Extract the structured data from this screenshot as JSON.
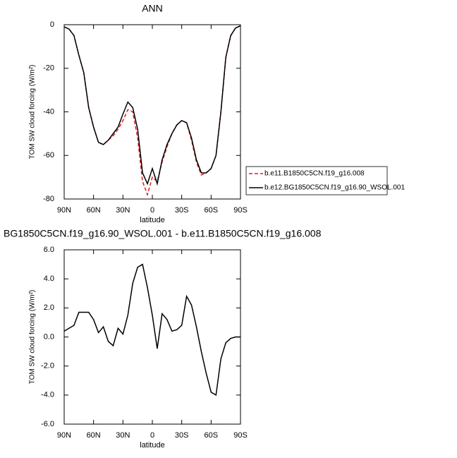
{
  "chart_data": [
    {
      "type": "line",
      "title": "ANN",
      "x_label": "latitude",
      "y_label": "TOM SW cloud forcing (W/m²)",
      "x": [
        90,
        85,
        80,
        75,
        70,
        65,
        60,
        55,
        50,
        45,
        40,
        35,
        30,
        25,
        20,
        15,
        10,
        5,
        0,
        -5,
        -10,
        -15,
        -20,
        -25,
        -30,
        -35,
        -40,
        -45,
        -50,
        -55,
        -60,
        -65,
        -70,
        -75,
        -80,
        -85,
        -90
      ],
      "series": [
        {
          "name": "b.e11.B1850C5CN.f19_g16.008",
          "color": "#e41a1c",
          "line_style": "dashed",
          "values": [
            -1,
            -2,
            -5,
            -14,
            -22,
            -38,
            -47,
            -54,
            -55,
            -53,
            -51,
            -48,
            -44,
            -39,
            -40,
            -52,
            -72,
            -78,
            -70,
            -72,
            -63,
            -56,
            -50,
            -46,
            -44,
            -45,
            -53,
            -63,
            -69,
            -68,
            -66,
            -60,
            -40,
            -15,
            -5,
            -1.5,
            -0.5
          ]
        },
        {
          "name": "b.e12.BG1850C5CN.f19_g16.90_WSOL.001",
          "color": "#000000",
          "line_style": "solid",
          "values": [
            -1,
            -2,
            -5,
            -14,
            -22,
            -38,
            -47,
            -54,
            -55,
            -53,
            -50,
            -47,
            -41,
            -35.5,
            -38,
            -48,
            -68,
            -73,
            -66,
            -73,
            -62,
            -55,
            -50,
            -46,
            -44,
            -45,
            -52,
            -62,
            -68,
            -68,
            -66,
            -60,
            -40,
            -15,
            -5,
            -1.5,
            -0.5
          ]
        }
      ],
      "xlim": [
        90,
        -90
      ],
      "ylim": [
        -80,
        0
      ],
      "xticks": [
        {
          "value": 90,
          "label": "90N"
        },
        {
          "value": 60,
          "label": "60N"
        },
        {
          "value": 30,
          "label": "30N"
        },
        0,
        {
          "value": -30,
          "label": "30S"
        },
        {
          "value": -60,
          "label": "60S"
        },
        {
          "value": -90,
          "label": "90S"
        }
      ],
      "yticks": [
        -80,
        -60,
        -40,
        -20,
        0
      ],
      "legend": "right"
    },
    {
      "type": "line",
      "title": "BG1850C5CN.f19_g16.90_WSOL.001 - b.e11.B1850C5CN.f19_g16.008",
      "x_label": "latitude",
      "y_label": "TOM SW cloud forcing (W/m²)",
      "x": [
        90,
        85,
        80,
        75,
        70,
        65,
        60,
        55,
        50,
        45,
        40,
        35,
        30,
        25,
        20,
        15,
        10,
        5,
        0,
        -5,
        -10,
        -15,
        -20,
        -25,
        -30,
        -35,
        -40,
        -45,
        -50,
        -55,
        -60,
        -65,
        -70,
        -75,
        -80,
        -85,
        -90
      ],
      "series": [
        {
          "color": "#000000",
          "line_style": "solid",
          "values": [
            0.4,
            0.6,
            0.8,
            1.7,
            1.7,
            1.7,
            1.2,
            0.3,
            0.7,
            -0.3,
            -0.6,
            0.6,
            0.2,
            1.5,
            3.7,
            4.8,
            5.0,
            3.4,
            1.5,
            -0.8,
            1.6,
            1.2,
            0.4,
            0.5,
            0.8,
            2.8,
            2.2,
            0.7,
            -1.0,
            -2.5,
            -3.8,
            -4.0,
            -1.5,
            -0.4,
            -0.1,
            0.0,
            0.0
          ]
        }
      ],
      "xlim": [
        90,
        -90
      ],
      "ylim": [
        -6,
        6
      ],
      "xticks": [
        {
          "value": 90,
          "label": "90N"
        },
        {
          "value": 60,
          "label": "60N"
        },
        {
          "value": 30,
          "label": "30N"
        },
        0,
        {
          "value": -30,
          "label": "30S"
        },
        {
          "value": -60,
          "label": "60S"
        },
        {
          "value": -90,
          "label": "90S"
        }
      ],
      "yticks": [
        {
          "value": -6,
          "label": "-6.0"
        },
        {
          "value": -4,
          "label": "-4.0"
        },
        {
          "value": -2,
          "label": "-2.0"
        },
        {
          "value": 0,
          "label": "0.0"
        },
        {
          "value": 2,
          "label": "2.0"
        },
        {
          "value": 4,
          "label": "4.0"
        },
        {
          "value": 6,
          "label": "6.0"
        }
      ]
    }
  ]
}
